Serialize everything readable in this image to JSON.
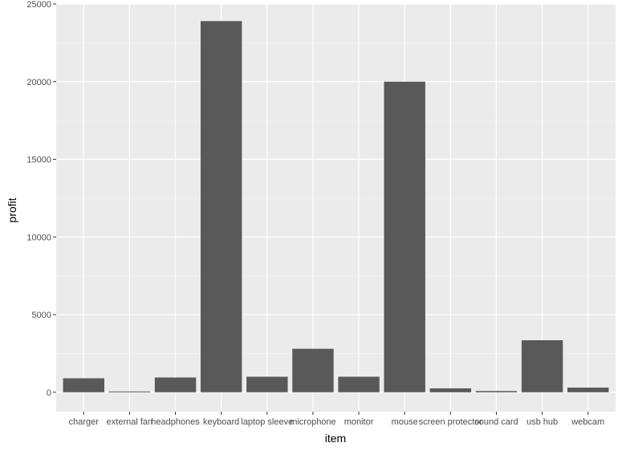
{
  "chart_data": {
    "type": "bar",
    "xlabel": "item",
    "ylabel": "profit",
    "categories": [
      "charger",
      "external fan",
      "headphones",
      "keyboard",
      "laptop sleeve",
      "microphone",
      "monitor",
      "mouse",
      "screen protector",
      "sound card",
      "usb hub",
      "webcam"
    ],
    "values": [
      900,
      50,
      950,
      23900,
      1000,
      2800,
      1000,
      20000,
      250,
      80,
      3350,
      300
    ],
    "ylim": [
      -1250,
      25000
    ],
    "yticks": [
      0,
      5000,
      10000,
      15000,
      20000,
      25000
    ],
    "ytick_labels": [
      "0",
      "5000",
      "10000",
      "15000",
      "20000",
      "25000"
    ],
    "grid": true,
    "legend": "none",
    "colors": {
      "bar": "#595959",
      "panel": "#ebebeb",
      "grid_major": "#ffffff",
      "grid_minor": "#f2f2f2",
      "tick_text": "#4d4d4d",
      "axis_title": "#000000"
    }
  }
}
